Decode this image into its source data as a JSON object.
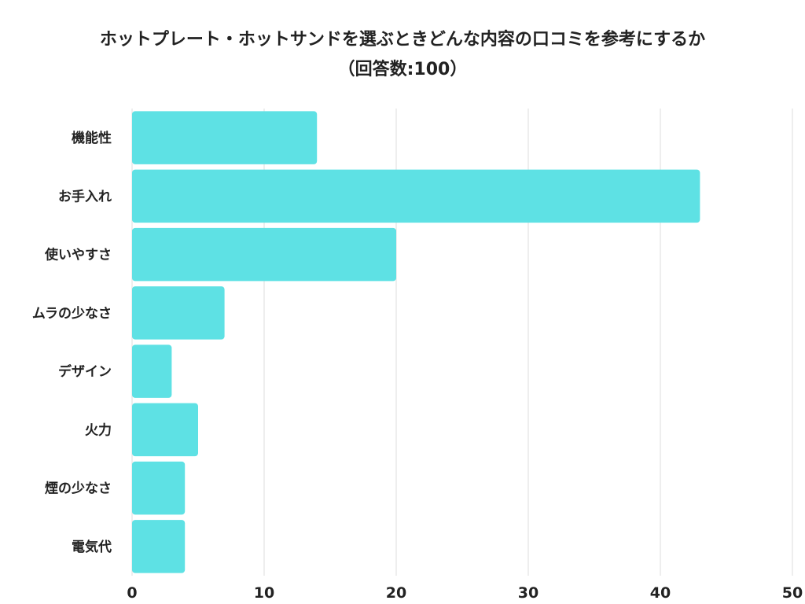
{
  "chart_data": {
    "type": "bar",
    "orientation": "horizontal",
    "title": "ホットプレート・ホットサンドを選ぶときどんな内容の口コミを参考にするか",
    "subtitle": "（回答数:100）",
    "categories": [
      "機能性",
      "お手入れ",
      "使いやすさ",
      "ムラの少なさ",
      "デザイン",
      "火力",
      "煙の少なさ",
      "電気代"
    ],
    "values": [
      14,
      43,
      20,
      7,
      3,
      5,
      4,
      4
    ],
    "xlim": [
      0,
      50
    ],
    "xticks": [
      "0",
      "10",
      "20",
      "30",
      "40",
      "50"
    ],
    "grid": true,
    "bar_color": "#5ee1e4",
    "grid_color": "#dddddd",
    "xlabel": "",
    "ylabel": ""
  }
}
